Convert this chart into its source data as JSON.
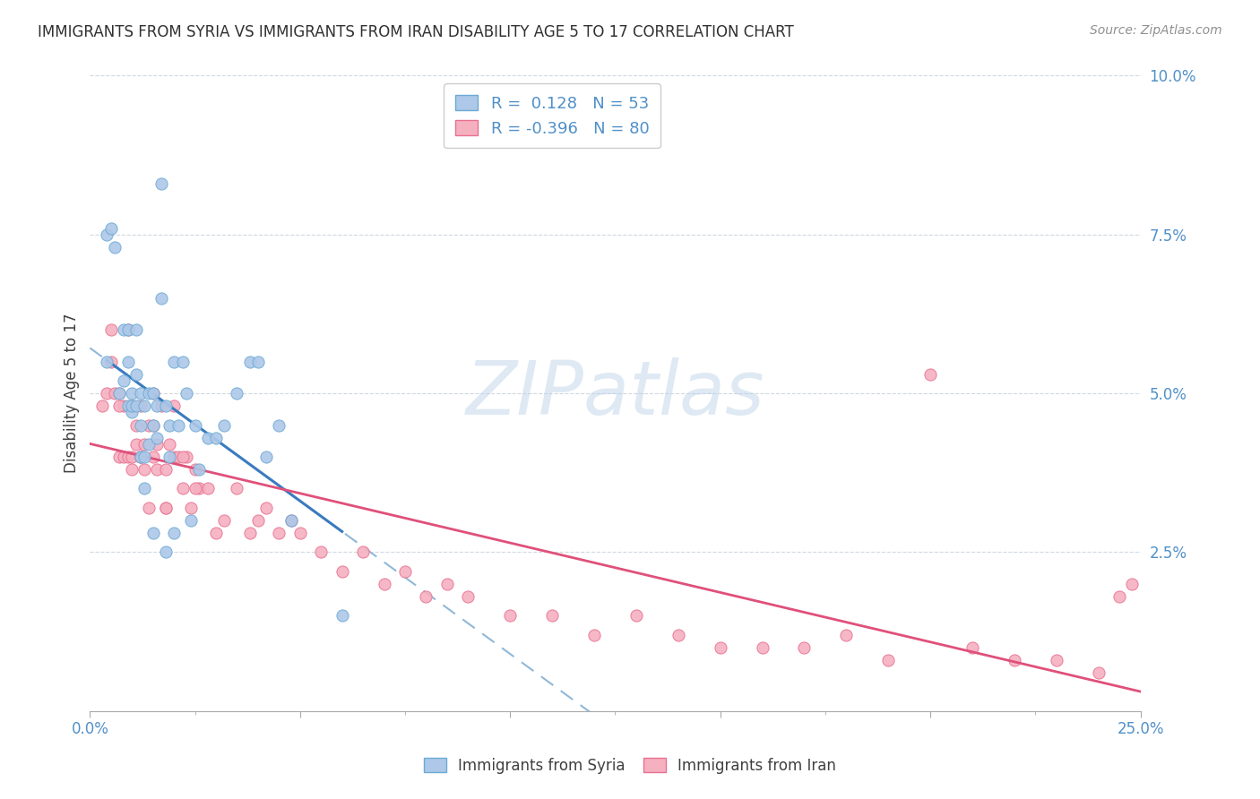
{
  "title": "IMMIGRANTS FROM SYRIA VS IMMIGRANTS FROM IRAN DISABILITY AGE 5 TO 17 CORRELATION CHART",
  "source": "Source: ZipAtlas.com",
  "ylabel": "Disability Age 5 to 17",
  "xmin": 0.0,
  "xmax": 0.25,
  "ymin": 0.0,
  "ymax": 0.1,
  "r_syria": 0.128,
  "n_syria": 53,
  "r_iran": -0.396,
  "n_iran": 80,
  "syria_color": "#adc8e8",
  "iran_color": "#f5b0c0",
  "syria_edge_color": "#6aaad4",
  "iran_edge_color": "#e87090",
  "syria_line_color": "#3a7bbf",
  "iran_line_color": "#e0507a",
  "syria_dash_color": "#90b8d8",
  "background_color": "#ffffff",
  "watermark": "ZIPatlas",
  "tick_color": "#5090c8",
  "grid_color": "#d0d8e0",
  "title_color": "#303030",
  "label_color": "#404040",
  "source_color": "#909090",
  "syria_x": [
    0.004,
    0.004,
    0.005,
    0.006,
    0.007,
    0.008,
    0.008,
    0.009,
    0.009,
    0.009,
    0.01,
    0.01,
    0.01,
    0.011,
    0.011,
    0.011,
    0.012,
    0.012,
    0.012,
    0.013,
    0.013,
    0.013,
    0.014,
    0.014,
    0.015,
    0.015,
    0.015,
    0.016,
    0.016,
    0.017,
    0.017,
    0.018,
    0.018,
    0.019,
    0.019,
    0.02,
    0.02,
    0.021,
    0.022,
    0.023,
    0.024,
    0.025,
    0.026,
    0.028,
    0.03,
    0.032,
    0.035,
    0.038,
    0.04,
    0.042,
    0.045,
    0.048,
    0.06
  ],
  "syria_y": [
    0.055,
    0.075,
    0.076,
    0.073,
    0.05,
    0.052,
    0.06,
    0.055,
    0.048,
    0.06,
    0.05,
    0.047,
    0.048,
    0.053,
    0.048,
    0.06,
    0.05,
    0.045,
    0.04,
    0.048,
    0.04,
    0.035,
    0.05,
    0.042,
    0.05,
    0.045,
    0.028,
    0.048,
    0.043,
    0.083,
    0.065,
    0.048,
    0.025,
    0.045,
    0.04,
    0.055,
    0.028,
    0.045,
    0.055,
    0.05,
    0.03,
    0.045,
    0.038,
    0.043,
    0.043,
    0.045,
    0.05,
    0.055,
    0.055,
    0.04,
    0.045,
    0.03,
    0.015
  ],
  "iran_x": [
    0.003,
    0.004,
    0.005,
    0.005,
    0.006,
    0.007,
    0.007,
    0.008,
    0.008,
    0.009,
    0.009,
    0.01,
    0.01,
    0.01,
    0.011,
    0.011,
    0.012,
    0.012,
    0.013,
    0.013,
    0.014,
    0.014,
    0.015,
    0.015,
    0.016,
    0.016,
    0.017,
    0.018,
    0.018,
    0.019,
    0.02,
    0.021,
    0.022,
    0.023,
    0.024,
    0.025,
    0.026,
    0.028,
    0.03,
    0.032,
    0.035,
    0.038,
    0.04,
    0.042,
    0.045,
    0.048,
    0.05,
    0.055,
    0.06,
    0.065,
    0.07,
    0.075,
    0.08,
    0.085,
    0.09,
    0.1,
    0.11,
    0.12,
    0.13,
    0.14,
    0.15,
    0.16,
    0.17,
    0.18,
    0.19,
    0.2,
    0.21,
    0.22,
    0.23,
    0.24,
    0.245,
    0.248,
    0.007,
    0.01,
    0.012,
    0.015,
    0.018,
    0.02,
    0.022,
    0.025
  ],
  "iran_y": [
    0.048,
    0.05,
    0.06,
    0.055,
    0.05,
    0.05,
    0.04,
    0.048,
    0.04,
    0.06,
    0.04,
    0.048,
    0.04,
    0.038,
    0.045,
    0.042,
    0.048,
    0.04,
    0.042,
    0.038,
    0.045,
    0.032,
    0.045,
    0.04,
    0.042,
    0.038,
    0.048,
    0.038,
    0.032,
    0.042,
    0.04,
    0.04,
    0.035,
    0.04,
    0.032,
    0.038,
    0.035,
    0.035,
    0.028,
    0.03,
    0.035,
    0.028,
    0.03,
    0.032,
    0.028,
    0.03,
    0.028,
    0.025,
    0.022,
    0.025,
    0.02,
    0.022,
    0.018,
    0.02,
    0.018,
    0.015,
    0.015,
    0.012,
    0.015,
    0.012,
    0.01,
    0.01,
    0.01,
    0.012,
    0.008,
    0.053,
    0.01,
    0.008,
    0.008,
    0.006,
    0.018,
    0.02,
    0.048,
    0.048,
    0.04,
    0.05,
    0.032,
    0.048,
    0.04,
    0.035
  ]
}
